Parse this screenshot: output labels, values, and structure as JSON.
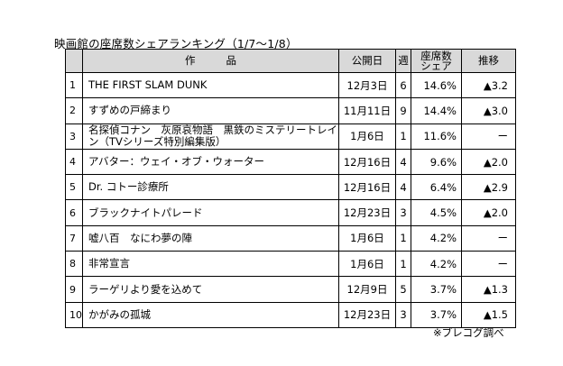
{
  "title": "映画館の座席数シェアランキング（1/7～1/8）",
  "headers": {
    "rank": "",
    "title_left": "作",
    "title_right": "品",
    "date": "公開日",
    "weeks": "週",
    "share_line1": "座席数",
    "share_line2": "シェア",
    "trend": "推移"
  },
  "rows": [
    {
      "rank": "1",
      "title": "THE FIRST SLAM DUNK",
      "date": "12月3日",
      "weeks": "6",
      "share": "14.6%",
      "trend": "▲3.2"
    },
    {
      "rank": "2",
      "title": "すずめの戸締まり",
      "date": "11月11日",
      "weeks": "9",
      "share": "14.4%",
      "trend": "▲3.0"
    },
    {
      "rank": "3",
      "title": "名探偵コナン　灰原哀物語　黒鉄のミステリートレイン（TVシリーズ特別編集版）",
      "date": "1月6日",
      "weeks": "1",
      "share": "11.6%",
      "trend": "ー"
    },
    {
      "rank": "4",
      "title": "アバター：ウェイ・オブ・ウォーター",
      "date": "12月16日",
      "weeks": "4",
      "share": "9.6%",
      "trend": "▲2.0"
    },
    {
      "rank": "5",
      "title": "Dr. コトー診療所",
      "date": "12月16日",
      "weeks": "4",
      "share": "6.4%",
      "trend": "▲2.9"
    },
    {
      "rank": "6",
      "title": "ブラックナイトパレード",
      "date": "12月23日",
      "weeks": "3",
      "share": "4.5%",
      "trend": "▲2.0"
    },
    {
      "rank": "7",
      "title": "嘘八百　なにわ夢の陣",
      "date": "1月6日",
      "weeks": "1",
      "share": "4.2%",
      "trend": "ー"
    },
    {
      "rank": "8",
      "title": "非常宣言",
      "date": "1月6日",
      "weeks": "1",
      "share": "4.2%",
      "trend": "ー"
    },
    {
      "rank": "9",
      "title": "ラーゲリより愛を込めて",
      "date": "12月9日",
      "weeks": "5",
      "share": "3.7%",
      "trend": "▲1.3"
    },
    {
      "rank": "10",
      "title": "かがみの孤城",
      "date": "12月23日",
      "weeks": "3",
      "share": "3.7%",
      "trend": "▲1.5"
    }
  ],
  "footnote": "※ブレコグ調べ"
}
